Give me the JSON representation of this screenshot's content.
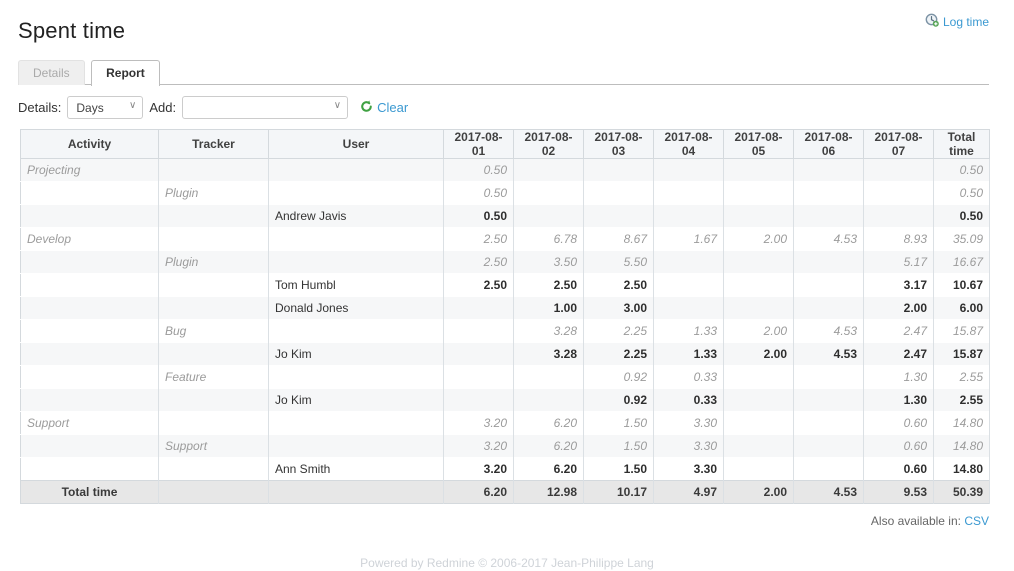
{
  "page": {
    "title": "Spent time",
    "log_time_label": "Log time",
    "also_available_label": "Also available in:",
    "csv_label": "CSV",
    "footer_text": "Powered by Redmine © 2006-2017 Jean-Philippe Lang"
  },
  "tabs": [
    {
      "label": "Details",
      "active": false
    },
    {
      "label": "Report",
      "active": true
    }
  ],
  "toolbar": {
    "details_label": "Details:",
    "details_value": "Days",
    "add_label": "Add:",
    "add_value": "",
    "clear_label": "Clear"
  },
  "colors": {
    "link": "#3b99d1",
    "header_bg": "#f4f6f8",
    "row_odd_bg": "#f6f7f8",
    "total_row_bg": "#e7e7e7",
    "muted_italic_text": "#9b9b9b",
    "text": "#333333",
    "clear_icon_green": "#3fa142"
  },
  "icons": {
    "log_time": "clock-add-icon",
    "clear": "reload-icon"
  },
  "report_table": {
    "columns": [
      "Activity",
      "Tracker",
      "User",
      "2017-08-01",
      "2017-08-02",
      "2017-08-03",
      "2017-08-04",
      "2017-08-05",
      "2017-08-06",
      "2017-08-07",
      "Total time"
    ],
    "rows": [
      {
        "type": "activity",
        "label": "Projecting",
        "values": [
          "0.50",
          "",
          "",
          "",
          "",
          "",
          ""
        ],
        "total": "0.50"
      },
      {
        "type": "tracker",
        "label": "Plugin",
        "values": [
          "0.50",
          "",
          "",
          "",
          "",
          "",
          ""
        ],
        "total": "0.50"
      },
      {
        "type": "user",
        "label": "Andrew Javis",
        "values": [
          "0.50",
          "",
          "",
          "",
          "",
          "",
          ""
        ],
        "total": "0.50"
      },
      {
        "type": "activity",
        "label": "Develop",
        "values": [
          "2.50",
          "6.78",
          "8.67",
          "1.67",
          "2.00",
          "4.53",
          "8.93"
        ],
        "total": "35.09"
      },
      {
        "type": "tracker",
        "label": "Plugin",
        "values": [
          "2.50",
          "3.50",
          "5.50",
          "",
          "",
          "",
          "5.17"
        ],
        "total": "16.67"
      },
      {
        "type": "user",
        "label": "Tom Humbl",
        "values": [
          "2.50",
          "2.50",
          "2.50",
          "",
          "",
          "",
          "3.17"
        ],
        "total": "10.67"
      },
      {
        "type": "user",
        "label": "Donald Jones",
        "values": [
          "",
          "1.00",
          "3.00",
          "",
          "",
          "",
          "2.00"
        ],
        "total": "6.00"
      },
      {
        "type": "tracker",
        "label": "Bug",
        "values": [
          "",
          "3.28",
          "2.25",
          "1.33",
          "2.00",
          "4.53",
          "2.47"
        ],
        "total": "15.87"
      },
      {
        "type": "user",
        "label": "Jo Kim",
        "values": [
          "",
          "3.28",
          "2.25",
          "1.33",
          "2.00",
          "4.53",
          "2.47"
        ],
        "total": "15.87"
      },
      {
        "type": "tracker",
        "label": "Feature",
        "values": [
          "",
          "",
          "0.92",
          "0.33",
          "",
          "",
          "1.30"
        ],
        "total": "2.55"
      },
      {
        "type": "user",
        "label": "Jo Kim",
        "values": [
          "",
          "",
          "0.92",
          "0.33",
          "",
          "",
          "1.30"
        ],
        "total": "2.55"
      },
      {
        "type": "activity",
        "label": "Support",
        "values": [
          "3.20",
          "6.20",
          "1.50",
          "3.30",
          "",
          "",
          "0.60"
        ],
        "total": "14.80"
      },
      {
        "type": "tracker",
        "label": "Support",
        "values": [
          "3.20",
          "6.20",
          "1.50",
          "3.30",
          "",
          "",
          "0.60"
        ],
        "total": "14.80"
      },
      {
        "type": "user",
        "label": "Ann Smith",
        "values": [
          "3.20",
          "6.20",
          "1.50",
          "3.30",
          "",
          "",
          "0.60"
        ],
        "total": "14.80"
      },
      {
        "type": "total",
        "label": "Total time",
        "values": [
          "6.20",
          "12.98",
          "10.17",
          "4.97",
          "2.00",
          "4.53",
          "9.53"
        ],
        "total": "50.39"
      }
    ]
  }
}
